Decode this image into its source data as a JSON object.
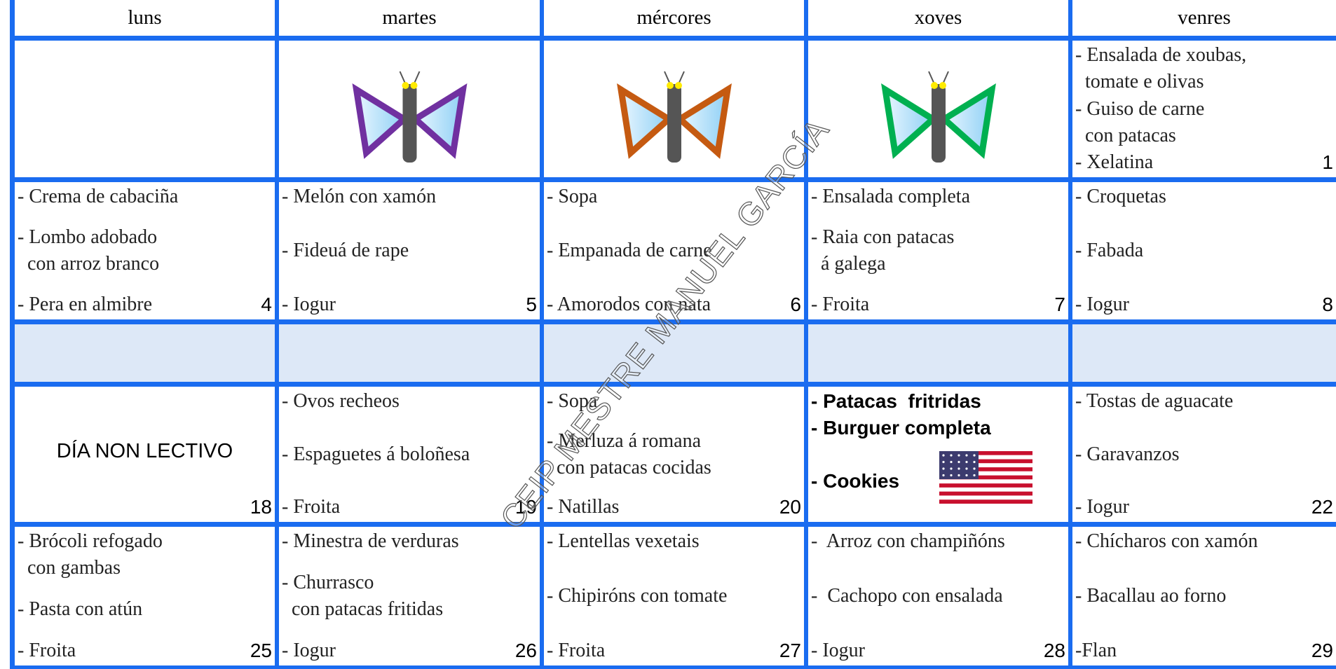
{
  "header": {
    "days": [
      "luns",
      "martes",
      "mércores",
      "xoves",
      "venres"
    ]
  },
  "weeks": [
    {
      "cells": [
        {},
        {},
        {},
        {},
        {
          "items": [
            "- Ensalada de xoubas,\n  tomate e olivas",
            "- Guiso de carne\n  con patacas",
            "- Xelatina"
          ],
          "day": 1
        }
      ]
    },
    {
      "cells": [
        {
          "items": [
            "- Crema de cabaciña",
            "- Lombo adobado\n  con arroz branco",
            "- Pera en almibre"
          ],
          "day": 4
        },
        {
          "items": [
            "- Melón con xamón",
            "- Fideuá de rape",
            "- Iogur"
          ],
          "day": 5
        },
        {
          "items": [
            "- Sopa",
            "- Empanada de carne",
            "- Amorodos con nata"
          ],
          "day": 6
        },
        {
          "items": [
            "- Ensalada completa",
            "- Raia con patacas\n  á galega",
            "- Froita"
          ],
          "day": 7
        },
        {
          "items": [
            "- Croquetas",
            "- Fabada",
            "- Iogur"
          ],
          "day": 8
        }
      ]
    },
    {
      "cells": [
        {},
        {},
        {},
        {},
        {}
      ]
    },
    {
      "cells": [
        {
          "note": "DÍA NON LECTIVO",
          "day": 18
        },
        {
          "items": [
            "- Ovos recheos",
            "- Espaguetes á boloñesa",
            "- Froita"
          ],
          "day": 19
        },
        {
          "items": [
            "- Sopa",
            "- Merluza á romana\n  con patacas cocidas",
            "- Natillas"
          ],
          "day": 20
        },
        {
          "items": [
            "- Patacas  fritridas",
            "- Burguer completa",
            "- Cookies"
          ]
        },
        {
          "items": [
            "- Tostas de aguacate",
            "- Garavanzos",
            "- Iogur"
          ],
          "day": 22
        }
      ]
    },
    {
      "cells": [
        {
          "items": [
            "- Brócoli refogado\n  con gambas",
            "- Pasta con atún",
            "- Froita"
          ],
          "day": 25
        },
        {
          "items": [
            "- Minestra de verduras",
            "- Churrasco\n  con patacas fritidas",
            "- Iogur"
          ],
          "day": 26
        },
        {
          "items": [
            "- Lentellas vexetais",
            "- Chipiróns con tomate",
            "- Froita"
          ],
          "day": 27
        },
        {
          "items": [
            "-  Arroz con champiñóns",
            "-  Cachopo con ensalada",
            "- Iogur"
          ],
          "day": 28
        },
        {
          "items": [
            "- Chícharos con xamón",
            "- Bacallau ao forno",
            "-Flan"
          ],
          "day": 29
        }
      ]
    }
  ],
  "watermark": "CEIP MESTRE MANUEL GARCÍA"
}
